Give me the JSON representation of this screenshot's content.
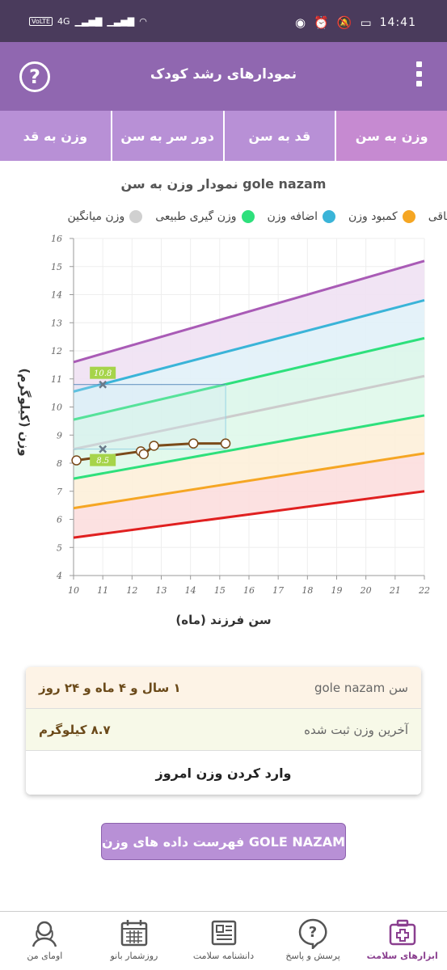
{
  "statusbar": {
    "network": "4G",
    "time": "14:41",
    "volte": "VoLTE"
  },
  "header": {
    "title": "نمودارهای رشد کودک"
  },
  "tabs": [
    {
      "label": "وزن به سن",
      "active": true
    },
    {
      "label": "قد به سن",
      "active": false
    },
    {
      "label": "دور سر به سن",
      "active": false
    },
    {
      "label": "وزن به قد",
      "active": false
    }
  ],
  "legend": [
    {
      "label": "چاقی",
      "color": "#a95bb6"
    },
    {
      "label": "کمبود وزن",
      "color": "#f5a623"
    },
    {
      "label": "اضافه وزن",
      "color": "#3ab4d8"
    },
    {
      "label": "وزن گیری طبیعی",
      "color": "#2ee07c"
    },
    {
      "label": "وزن میانگین",
      "color": "#d0d0d0"
    }
  ],
  "chart_data": {
    "type": "line",
    "title": "نمودار وزن به سن gole nazam",
    "xlabel": "سن فرزند (ماه)",
    "ylabel": "وزن (کیلوگرم)",
    "xlim": [
      10,
      22
    ],
    "ylim": [
      4,
      16
    ],
    "x_ticks": [
      "10",
      "11",
      "12",
      "13",
      "14",
      "15",
      "16",
      "17",
      "18",
      "19",
      "20",
      "21",
      "22"
    ],
    "y_ticks": [
      "4",
      "5",
      "6",
      "7",
      "8",
      "9",
      "10",
      "11",
      "12",
      "13",
      "14",
      "15",
      "16"
    ],
    "grid": true,
    "series": [
      {
        "name": "چاقی",
        "color": "#a95bb6",
        "x": [
          10,
          22
        ],
        "values": [
          11.6,
          15.2
        ]
      },
      {
        "name": "اضافه وزن",
        "color": "#3ab4d8",
        "x": [
          10,
          22
        ],
        "values": [
          10.55,
          13.8
        ]
      },
      {
        "name": "وزن گیری طبیعی",
        "color": "#2ee07c",
        "x": [
          10,
          22
        ],
        "values": [
          9.55,
          12.45
        ]
      },
      {
        "name": "وزن میانگین",
        "color": "#cccccc",
        "x": [
          10,
          22
        ],
        "values": [
          8.5,
          11.1
        ]
      },
      {
        "color": "#2ee07c",
        "x": [
          10,
          22
        ],
        "values": [
          7.45,
          9.7
        ]
      },
      {
        "name": "کمبود وزن",
        "color": "#f5a623",
        "x": [
          10,
          22
        ],
        "values": [
          6.4,
          8.35
        ]
      },
      {
        "color": "#e02020",
        "x": [
          10,
          22
        ],
        "values": [
          5.35,
          7.0
        ]
      }
    ],
    "child_series": {
      "color": "#7a4a1a",
      "x": [
        10.1,
        12.3,
        12.4,
        12.75,
        14.1,
        15.2
      ],
      "values": [
        8.1,
        8.42,
        8.32,
        8.62,
        8.7,
        8.7
      ]
    },
    "markers": [
      {
        "x": 11,
        "y": 10.8,
        "label": "10.8"
      },
      {
        "x": 11,
        "y": 8.5,
        "label": "8.5"
      }
    ]
  },
  "info": {
    "age_label": "سن gole nazam",
    "age_value": "۱ سال و ۴ ماه و ۲۴ روز",
    "weight_label": "آخرین وزن ثبت شده",
    "weight_value": "۸.۷ کیلوگرم",
    "action_label": "وارد کردن وزن امروز"
  },
  "list_button": "فهرست داده های وزن GOLE NAZAM",
  "bottom_nav": [
    {
      "label": "ابزارهای سلامت",
      "icon": "medical-kit-icon",
      "active": true
    },
    {
      "label": "پرسش و پاسخ",
      "icon": "question-bubble-icon",
      "active": false
    },
    {
      "label": "دانشنامه سلامت",
      "icon": "newspaper-icon",
      "active": false
    },
    {
      "label": "روزشمار بانو",
      "icon": "calendar-icon",
      "active": false
    },
    {
      "label": "اومای من",
      "icon": "woman-avatar-icon",
      "active": false
    }
  ]
}
